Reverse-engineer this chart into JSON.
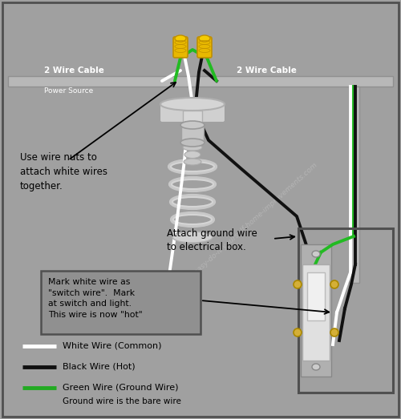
{
  "bg_color": "#a0a0a0",
  "border_color": "#606060",
  "watermark": "www.easy-do-it-yourself-home-improvements.com",
  "cable_left_label": "2 Wire Cable",
  "cable_left_sublabel": "Power Source",
  "cable_right_label": "2 Wire Cable",
  "ann1": "Use wire nuts to\nattach white wires\ntogether.",
  "ann2": "Attach ground wire\nto electrical box.",
  "box_text": "Mark white wire as\n\"switch wire\".  Mark\nat switch and light.\nThis wire is now \"hot\"",
  "legend": [
    {
      "color": "#ffffff",
      "label": "White Wire (Common)"
    },
    {
      "color": "#111111",
      "label": "Black Wire (Hot)"
    },
    {
      "color": "#22aa22",
      "label": "Green Wire (Ground Wire)"
    },
    {
      "sublabel": "Ground wire is the bare wire"
    }
  ],
  "figsize": [
    5.0,
    5.23
  ],
  "dpi": 100
}
